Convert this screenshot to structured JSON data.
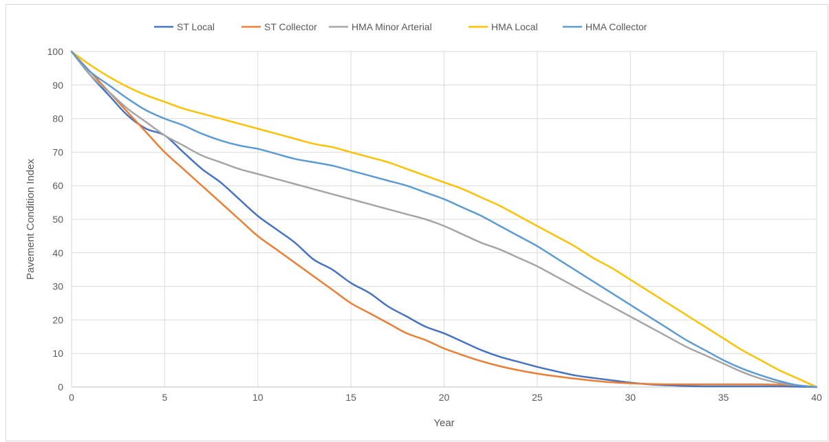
{
  "chart_data": {
    "type": "line",
    "title": "",
    "xlabel": "Year",
    "ylabel": "Pavement Condition Index",
    "xlim": [
      0,
      40
    ],
    "ylim": [
      0,
      100
    ],
    "x_ticks": [
      0,
      5,
      10,
      15,
      20,
      25,
      30,
      35,
      40
    ],
    "y_ticks": [
      0,
      10,
      20,
      30,
      40,
      50,
      60,
      70,
      80,
      90,
      100
    ],
    "grid": true,
    "legend_position": "top",
    "series": [
      {
        "name": "ST Local",
        "color": "#4472C4",
        "x": [
          0,
          1,
          2,
          3,
          4,
          5,
          6,
          7,
          8,
          9,
          10,
          11,
          12,
          13,
          14,
          15,
          16,
          17,
          18,
          19,
          20,
          21,
          22,
          23,
          24,
          25,
          26,
          27,
          28,
          29,
          30,
          31,
          32,
          33,
          34,
          35,
          36,
          37,
          38,
          39,
          40
        ],
        "y": [
          100,
          93,
          87,
          81,
          77,
          75,
          70,
          65,
          61,
          56,
          51,
          47,
          43,
          38,
          35,
          31,
          28,
          24,
          21,
          18,
          16,
          13.5,
          11,
          9,
          7.5,
          6,
          4.7,
          3.5,
          2.7,
          2,
          1.3,
          0.8,
          0.5,
          0.3,
          0.2,
          0.2,
          0.2,
          0.2,
          0.2,
          0.1,
          0
        ]
      },
      {
        "name": "ST Collector",
        "color": "#ED7D31",
        "x": [
          0,
          1,
          2,
          3,
          4,
          5,
          6,
          7,
          8,
          9,
          10,
          11,
          12,
          13,
          14,
          15,
          16,
          17,
          18,
          19,
          20,
          21,
          22,
          23,
          24,
          25,
          26,
          27,
          28,
          29,
          30,
          31,
          32,
          33,
          34,
          35,
          36,
          37,
          38,
          39,
          40
        ],
        "y": [
          100,
          94,
          88,
          82,
          76,
          70,
          65,
          60,
          55,
          50,
          45,
          41,
          37,
          33,
          29,
          25,
          22,
          19,
          16,
          14,
          11.5,
          9.5,
          7.7,
          6.2,
          5,
          4,
          3.2,
          2.5,
          1.9,
          1.4,
          1.1,
          0.9,
          0.8,
          0.8,
          0.8,
          0.8,
          0.8,
          0.8,
          0.7,
          0.5,
          0
        ]
      },
      {
        "name": "HMA Minor Arterial",
        "color": "#A5A5A5",
        "x": [
          0,
          1,
          2,
          3,
          4,
          5,
          6,
          7,
          8,
          9,
          10,
          11,
          12,
          13,
          14,
          15,
          16,
          17,
          18,
          19,
          20,
          21,
          22,
          23,
          24,
          25,
          26,
          27,
          28,
          29,
          30,
          31,
          32,
          33,
          34,
          35,
          36,
          37,
          38,
          39,
          40
        ],
        "y": [
          100,
          93,
          88,
          83,
          79,
          75,
          72,
          69,
          67,
          65,
          63.5,
          62,
          60.5,
          59,
          57.5,
          56,
          54.5,
          53,
          51.5,
          50,
          48,
          45.5,
          43,
          41,
          38.5,
          36,
          33,
          30,
          27,
          24,
          21,
          18,
          15,
          12,
          9.5,
          7,
          4.5,
          2.5,
          1.2,
          0.5,
          0
        ]
      },
      {
        "name": "HMA Local",
        "color": "#FFC000",
        "x": [
          0,
          1,
          2,
          3,
          4,
          5,
          6,
          7,
          8,
          9,
          10,
          11,
          12,
          13,
          14,
          15,
          16,
          17,
          18,
          19,
          20,
          21,
          22,
          23,
          24,
          25,
          26,
          27,
          28,
          29,
          30,
          31,
          32,
          33,
          34,
          35,
          36,
          37,
          38,
          39,
          40
        ],
        "y": [
          100,
          96,
          92.5,
          89.5,
          87,
          85,
          83,
          81.5,
          80,
          78.5,
          77,
          75.5,
          74,
          72.5,
          71.5,
          70,
          68.5,
          67,
          65,
          63,
          61,
          59,
          56.5,
          54,
          51,
          48,
          45,
          42,
          38.5,
          35.5,
          32,
          28.5,
          25,
          21.5,
          18,
          14.5,
          11,
          8,
          5,
          2.5,
          0
        ]
      },
      {
        "name": "HMA Collector",
        "color": "#5B9BD5",
        "x": [
          0,
          1,
          2,
          3,
          4,
          5,
          6,
          7,
          8,
          9,
          10,
          11,
          12,
          13,
          14,
          15,
          16,
          17,
          18,
          19,
          20,
          21,
          22,
          23,
          24,
          25,
          26,
          27,
          28,
          29,
          30,
          31,
          32,
          33,
          34,
          35,
          36,
          37,
          38,
          39,
          40
        ],
        "y": [
          100,
          94,
          90,
          86,
          82.5,
          80,
          78,
          75.5,
          73.5,
          72,
          71,
          69.5,
          68,
          67,
          66,
          64.5,
          63,
          61.5,
          60,
          58,
          56,
          53.5,
          51,
          48,
          45,
          42,
          38.5,
          35,
          31.5,
          28,
          24.5,
          21,
          17.5,
          14,
          11,
          8,
          5.5,
          3.5,
          1.8,
          0.5,
          0
        ]
      }
    ]
  }
}
